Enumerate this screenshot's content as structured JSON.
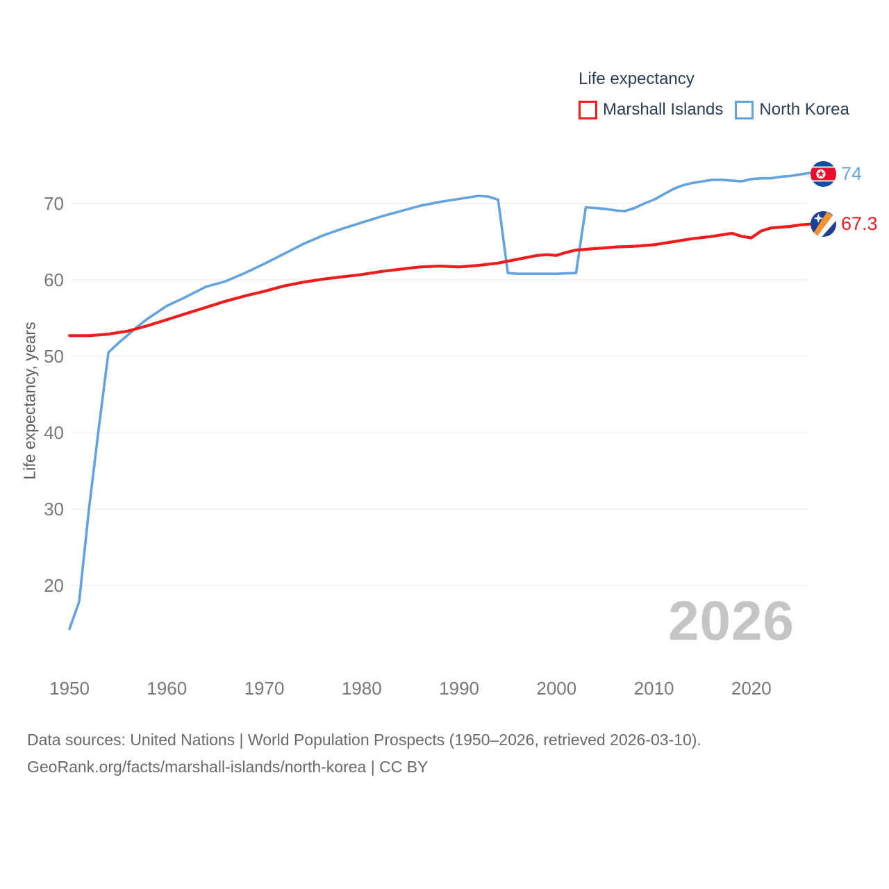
{
  "legend": {
    "title": "Life expectancy",
    "items": [
      {
        "label": "Marshall Islands",
        "color": "#ee1c1c"
      },
      {
        "label": "North Korea",
        "color": "#63a3dd"
      }
    ]
  },
  "y_axis_label": "Life expectancy, years",
  "watermark_year": "2026",
  "footer": {
    "line1": "Data sources: United Nations | World Population Prospects (1950–2026, retrieved 2026-03-10).",
    "line2": "GeoRank.org/facts/marshall-islands/north-korea | CC BY"
  },
  "end_labels": {
    "north_korea": {
      "value": "74",
      "color": "#63a3dd",
      "flag": "north-korea"
    },
    "marshall_islands": {
      "value": "67.3",
      "color": "#ee1c1c",
      "flag": "marshall-islands"
    }
  },
  "chart_data": {
    "type": "line",
    "title": "Life expectancy",
    "xlabel": "",
    "ylabel": "Life expectancy, years",
    "xlim": [
      1950,
      2026
    ],
    "ylim": [
      12,
      76
    ],
    "x_ticks": [
      1950,
      1960,
      1970,
      1980,
      1990,
      2000,
      2010,
      2020
    ],
    "y_ticks": [
      20,
      30,
      40,
      50,
      60,
      70
    ],
    "grid": "horizontal-only",
    "legend_position": "top-right",
    "series": [
      {
        "name": "North Korea",
        "color": "#63a3dd",
        "stroke_width": 3.6,
        "end_value_label": "74",
        "points": [
          [
            1950,
            14.3
          ],
          [
            1951,
            17.9
          ],
          [
            1952,
            30.0
          ],
          [
            1953,
            40.5
          ],
          [
            1954,
            50.5
          ],
          [
            1955,
            51.7
          ],
          [
            1956,
            52.8
          ],
          [
            1957,
            53.9
          ],
          [
            1958,
            54.9
          ],
          [
            1960,
            56.6
          ],
          [
            1962,
            57.8
          ],
          [
            1964,
            59.1
          ],
          [
            1966,
            59.8
          ],
          [
            1968,
            60.9
          ],
          [
            1970,
            62.1
          ],
          [
            1972,
            63.4
          ],
          [
            1974,
            64.7
          ],
          [
            1976,
            65.8
          ],
          [
            1978,
            66.7
          ],
          [
            1980,
            67.5
          ],
          [
            1982,
            68.3
          ],
          [
            1984,
            69.0
          ],
          [
            1986,
            69.7
          ],
          [
            1988,
            70.2
          ],
          [
            1990,
            70.6
          ],
          [
            1992,
            71.0
          ],
          [
            1993,
            70.9
          ],
          [
            1994,
            70.5
          ],
          [
            1995,
            60.9
          ],
          [
            1996,
            60.8
          ],
          [
            1998,
            60.8
          ],
          [
            2000,
            60.8
          ],
          [
            2002,
            60.9
          ],
          [
            2003,
            69.5
          ],
          [
            2004,
            69.4
          ],
          [
            2005,
            69.3
          ],
          [
            2006,
            69.1
          ],
          [
            2007,
            69.0
          ],
          [
            2008,
            69.4
          ],
          [
            2009,
            70.0
          ],
          [
            2010,
            70.5
          ],
          [
            2011,
            71.2
          ],
          [
            2012,
            71.9
          ],
          [
            2013,
            72.4
          ],
          [
            2014,
            72.7
          ],
          [
            2015,
            72.9
          ],
          [
            2016,
            73.1
          ],
          [
            2017,
            73.1
          ],
          [
            2018,
            73.0
          ],
          [
            2019,
            72.9
          ],
          [
            2020,
            73.2
          ],
          [
            2021,
            73.3
          ],
          [
            2022,
            73.3
          ],
          [
            2023,
            73.5
          ],
          [
            2024,
            73.6
          ],
          [
            2025,
            73.8
          ],
          [
            2026,
            74.0
          ]
        ]
      },
      {
        "name": "Marshall Islands",
        "color": "#ee1c1c",
        "stroke_width": 4.2,
        "end_value_label": "67.3",
        "points": [
          [
            1950,
            52.7
          ],
          [
            1952,
            52.7
          ],
          [
            1954,
            52.9
          ],
          [
            1956,
            53.3
          ],
          [
            1958,
            54.0
          ],
          [
            1960,
            54.8
          ],
          [
            1962,
            55.6
          ],
          [
            1964,
            56.4
          ],
          [
            1966,
            57.2
          ],
          [
            1968,
            57.9
          ],
          [
            1970,
            58.5
          ],
          [
            1972,
            59.2
          ],
          [
            1974,
            59.7
          ],
          [
            1976,
            60.1
          ],
          [
            1978,
            60.4
          ],
          [
            1980,
            60.7
          ],
          [
            1982,
            61.1
          ],
          [
            1984,
            61.4
          ],
          [
            1986,
            61.7
          ],
          [
            1988,
            61.8
          ],
          [
            1990,
            61.7
          ],
          [
            1992,
            61.9
          ],
          [
            1994,
            62.2
          ],
          [
            1996,
            62.7
          ],
          [
            1998,
            63.2
          ],
          [
            1999,
            63.3
          ],
          [
            2000,
            63.2
          ],
          [
            2001,
            63.6
          ],
          [
            2002,
            63.9
          ],
          [
            2004,
            64.1
          ],
          [
            2006,
            64.3
          ],
          [
            2008,
            64.4
          ],
          [
            2010,
            64.6
          ],
          [
            2012,
            65.0
          ],
          [
            2014,
            65.4
          ],
          [
            2016,
            65.7
          ],
          [
            2017,
            65.9
          ],
          [
            2018,
            66.1
          ],
          [
            2019,
            65.7
          ],
          [
            2020,
            65.5
          ],
          [
            2021,
            66.4
          ],
          [
            2022,
            66.8
          ],
          [
            2023,
            66.9
          ],
          [
            2024,
            67.0
          ],
          [
            2025,
            67.2
          ],
          [
            2026,
            67.3
          ]
        ]
      }
    ]
  }
}
